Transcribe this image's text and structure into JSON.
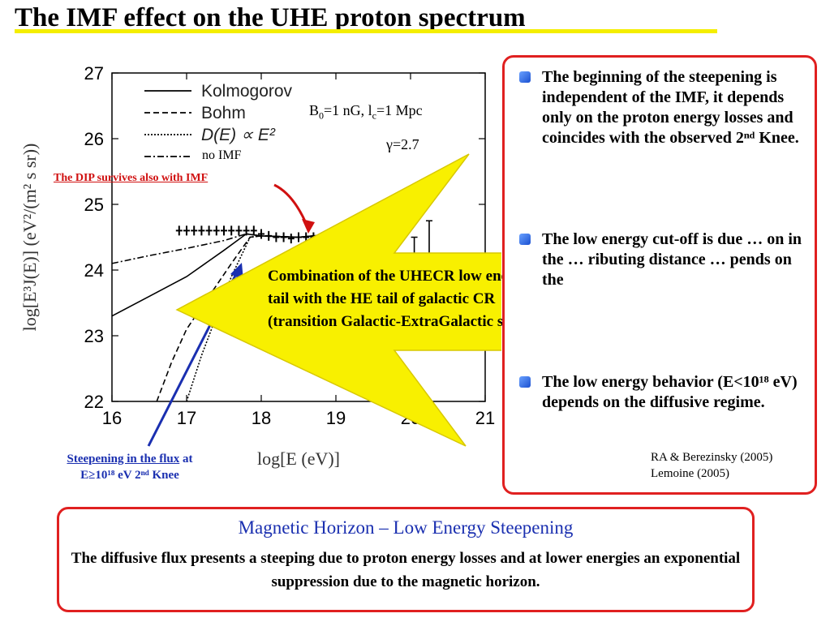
{
  "slide_title": "The IMF effect on the UHE proton spectrum",
  "chart_data": {
    "type": "line",
    "xlabel": "log[E (eV)]",
    "ylabel": "log[E³J(E)]   (eV²/(m² s sr))",
    "xlim": [
      16,
      21
    ],
    "ylim": [
      22,
      27
    ],
    "x_ticks": [
      "16",
      "17",
      "18",
      "19",
      "20",
      "21"
    ],
    "y_ticks": [
      "22",
      "23",
      "24",
      "25",
      "26",
      "27"
    ],
    "legend": [
      "Kolmogorov",
      "Bohm",
      "D(E) ∝ E²",
      "no IMF"
    ],
    "legend_position": "top-left",
    "annotations": [
      "B₀=1 nG, l꜀=1 Mpc",
      "γ=2.7"
    ],
    "series": [
      {
        "name": "Kolmogorov",
        "style": "solid",
        "x": [
          16,
          16.5,
          17,
          17.5,
          17.8,
          18,
          18.5,
          19,
          19.5,
          19.8,
          20,
          20.2
        ],
        "y": [
          23.3,
          23.6,
          23.9,
          24.3,
          24.55,
          24.52,
          24.5,
          24.55,
          24.45,
          24.1,
          23.5,
          22.8
        ]
      },
      {
        "name": "Bohm",
        "style": "dashed",
        "x": [
          16.6,
          16.8,
          17,
          17.3,
          17.6,
          17.85,
          18,
          18.5,
          19,
          19.5,
          19.8,
          20,
          20.2
        ],
        "y": [
          22,
          22.6,
          23.1,
          23.6,
          24.1,
          24.5,
          24.52,
          24.5,
          24.55,
          24.45,
          24.1,
          23.5,
          22.8
        ]
      },
      {
        "name": "D(E) ∝ E²",
        "style": "dotted",
        "x": [
          17,
          17.2,
          17.4,
          17.6,
          17.85,
          18,
          18.5,
          19,
          19.5,
          19.8,
          20,
          20.2
        ],
        "y": [
          22,
          22.7,
          23.3,
          23.9,
          24.5,
          24.52,
          24.5,
          24.55,
          24.45,
          24.1,
          23.5,
          22.8
        ]
      },
      {
        "name": "no IMF",
        "style": "dash-dot",
        "x": [
          16,
          16.5,
          17,
          17.5,
          17.8,
          18,
          18.5,
          19,
          19.5,
          19.8,
          20,
          20.2
        ],
        "y": [
          24.1,
          24.22,
          24.33,
          24.45,
          24.55,
          24.52,
          24.5,
          24.55,
          24.45,
          24.1,
          23.5,
          22.8
        ]
      }
    ],
    "data_points": {
      "x": [
        16.9,
        17.0,
        17.1,
        17.2,
        17.3,
        17.4,
        17.5,
        17.6,
        17.7,
        17.8,
        17.9,
        18.0,
        18.1,
        18.2,
        18.3,
        18.4,
        18.5,
        18.6,
        18.7,
        18.8
      ],
      "y": [
        24.6,
        24.6,
        24.6,
        24.6,
        24.6,
        24.6,
        24.6,
        24.6,
        24.6,
        24.6,
        24.6,
        24.55,
        24.52,
        24.5,
        24.5,
        24.48,
        24.5,
        24.5,
        24.5,
        24.48
      ]
    }
  },
  "labels": {
    "dip": "The DIP survives also with IMF",
    "steep_line1_u": "Steepening in the flux",
    "steep_line1_rest": " at",
    "steep_line2": "E≥10¹⁸ eV    2ⁿᵈ Knee",
    "arrow_line1": "Combination of the UHECR low energy",
    "arrow_line2": "tail with the HE tail of galactic CR",
    "arrow_line3": "(transition Galactic-ExtraGalactic see later)"
  },
  "bullets": [
    "The beginning of the steepening is independent of the IMF, it depends only on the proton energy losses and coincides with the observed 2ⁿᵈ Knee.",
    "The low energy cut-off is due … on in the … ributing distance … pends on the",
    "The low energy behavior (E<10¹⁸ eV) depends on the diffusive regime."
  ],
  "refs": [
    "RA & Berezinsky (2005)",
    "Lemoine (2005)"
  ],
  "bottom": {
    "heading": "Magnetic Horizon – Low Energy Steepening",
    "body": "The diffusive flux  presents a steeping due to proton energy losses and at lower energies an exponential suppression due to the magnetic horizon."
  },
  "colors": {
    "accent_red": "#e02020",
    "title_bar": "#f4ee00",
    "arrow_fill": "#f8f000",
    "blue": "#1a2fb0"
  }
}
